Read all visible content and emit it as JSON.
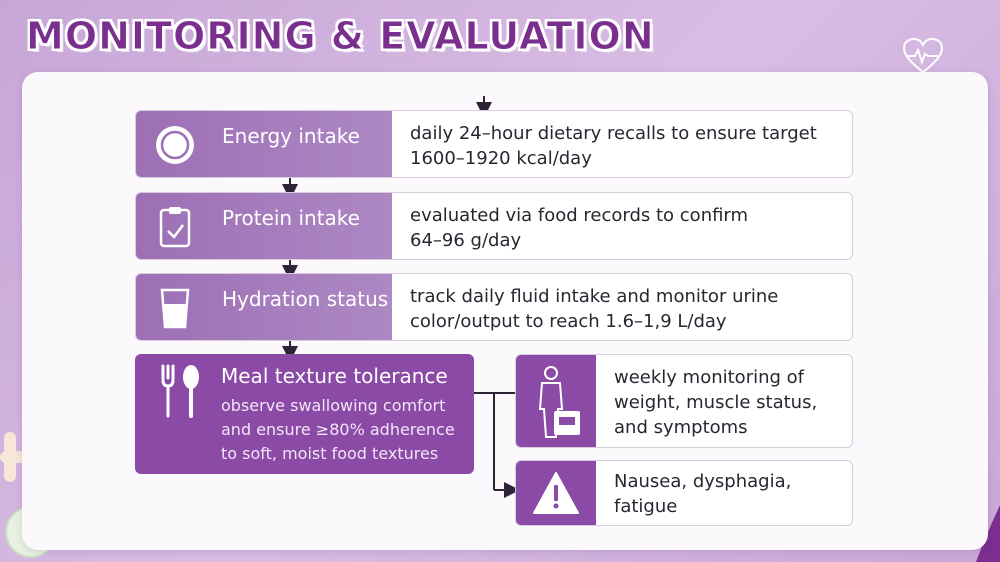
{
  "title": "MONITORING & EVALUATION",
  "icons": {
    "heart": "heart-icon",
    "energy": "plate-icon",
    "protein": "clipboard-icon",
    "hydration": "glass-icon",
    "meal": "utensils-icon",
    "weight": "person-scale-icon",
    "warning": "warning-icon"
  },
  "colors": {
    "accent": "#8b4aa6",
    "header_light": "#ad88c3",
    "title": "#7a2e8e",
    "background": "#c7a6d6"
  },
  "rows": [
    {
      "label": "Energy intake",
      "desc_line1": "daily 24–hour dietary recalls to ensure target",
      "desc_line2": "1600–1920 kcal/day"
    },
    {
      "label": "Protein intake",
      "desc_line1": "evaluated via food records to confirm",
      "desc_line2": "64–96 g/day"
    },
    {
      "label": "Hydration status",
      "desc_line1": "track daily fluid intake and monitor urine",
      "desc_line2": "color/output to reach 1.6–1,9 L/day"
    }
  ],
  "meal": {
    "label": "Meal texture tolerance",
    "sub_line1": "observe swallowing comfort",
    "sub_line2": "and ensure ≥80% adherence",
    "sub_line3": "to soft, moist food textures"
  },
  "weight_box": {
    "line1": "weekly monitoring of",
    "line2": "weight, muscle status,",
    "line3": "and symptoms"
  },
  "warning_box": {
    "line1": "Nausea, dysphagia,",
    "line2": "fatigue"
  }
}
